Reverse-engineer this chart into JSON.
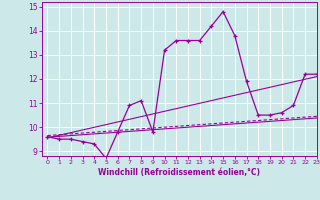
{
  "xlabel": "Windchill (Refroidissement éolien,°C)",
  "background_color": "#cce8e8",
  "grid_color": "#ffffff",
  "line_color": "#990099",
  "xlim": [
    -0.5,
    23
  ],
  "ylim": [
    8.8,
    15.2
  ],
  "yticks": [
    9,
    10,
    11,
    12,
    13,
    14,
    15
  ],
  "xticks": [
    0,
    1,
    2,
    3,
    4,
    5,
    6,
    7,
    8,
    9,
    10,
    11,
    12,
    13,
    14,
    15,
    16,
    17,
    18,
    19,
    20,
    21,
    22,
    23
  ],
  "main_x": [
    0,
    1,
    2,
    3,
    4,
    5,
    6,
    7,
    8,
    9,
    10,
    11,
    12,
    13,
    14,
    15,
    16,
    17,
    18,
    19,
    20,
    21,
    22,
    23
  ],
  "main_y": [
    9.6,
    9.5,
    9.5,
    9.4,
    9.3,
    8.7,
    9.8,
    10.9,
    11.1,
    9.8,
    13.2,
    13.6,
    13.6,
    13.6,
    14.2,
    14.8,
    13.8,
    11.9,
    10.5,
    10.5,
    10.6,
    10.9,
    12.2,
    12.2
  ],
  "trend1_x": [
    0,
    23
  ],
  "trend1_y": [
    9.55,
    12.1
  ],
  "trend2_x": [
    0,
    23
  ],
  "trend2_y": [
    9.58,
    10.38
  ],
  "trend3_x": [
    0,
    23
  ],
  "trend3_y": [
    9.65,
    10.45
  ]
}
